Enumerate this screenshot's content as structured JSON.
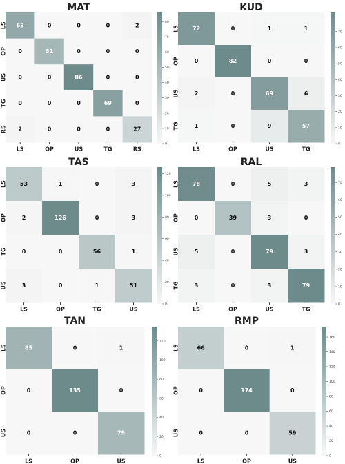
{
  "chart_data": [
    {
      "type": "heatmap",
      "title": "MAT",
      "x_labels": [
        "LS",
        "OP",
        "US",
        "TG",
        "RS"
      ],
      "y_labels": [
        "LS",
        "OP",
        "US",
        "TG",
        "RS"
      ],
      "matrix": [
        [
          63,
          0,
          0,
          0,
          2
        ],
        [
          0,
          51,
          0,
          0,
          0
        ],
        [
          0,
          0,
          86,
          0,
          0
        ],
        [
          0,
          0,
          0,
          69,
          0
        ],
        [
          2,
          0,
          0,
          0,
          27
        ]
      ],
      "colorbar_max": 86,
      "colorbar_ticks": [
        "0",
        "10",
        "20",
        "30",
        "40",
        "50",
        "60",
        "70",
        "80"
      ],
      "colorbar_tick_values": [
        0,
        10,
        20,
        30,
        40,
        50,
        60,
        70,
        80
      ]
    },
    {
      "type": "heatmap",
      "title": "KUD",
      "x_labels": [
        "LS",
        "OP",
        "US",
        "TG"
      ],
      "y_labels": [
        "LS",
        "OP",
        "US",
        "TG"
      ],
      "matrix": [
        [
          72,
          0,
          1,
          1
        ],
        [
          0,
          82,
          0,
          0
        ],
        [
          2,
          0,
          69,
          6
        ],
        [
          1,
          0,
          9,
          57
        ]
      ],
      "colorbar_max": 82,
      "colorbar_ticks": [
        "0",
        "10",
        "20",
        "30",
        "40",
        "50",
        "60",
        "70"
      ],
      "colorbar_tick_values": [
        0,
        10,
        20,
        30,
        40,
        50,
        60,
        70
      ]
    },
    {
      "type": "heatmap",
      "title": "TAS",
      "x_labels": [
        "LS",
        "OP",
        "TG",
        "US"
      ],
      "y_labels": [
        "LS",
        "OP",
        "TG",
        "US"
      ],
      "matrix": [
        [
          53,
          1,
          0,
          3
        ],
        [
          2,
          126,
          0,
          3
        ],
        [
          0,
          0,
          56,
          1
        ],
        [
          3,
          0,
          1,
          51
        ]
      ],
      "colorbar_max": 126,
      "colorbar_ticks": [
        "0",
        "20",
        "40",
        "60",
        "80",
        "100",
        "120"
      ],
      "colorbar_tick_values": [
        0,
        20,
        40,
        60,
        80,
        100,
        120
      ]
    },
    {
      "type": "heatmap",
      "title": "RAL",
      "x_labels": [
        "LS",
        "OP",
        "US",
        "TG"
      ],
      "y_labels": [
        "LS",
        "OP",
        "US",
        "TG"
      ],
      "matrix": [
        [
          78,
          0,
          5,
          3
        ],
        [
          0,
          39,
          3,
          0
        ],
        [
          5,
          0,
          79,
          3
        ],
        [
          3,
          0,
          3,
          79
        ]
      ],
      "colorbar_max": 79,
      "colorbar_ticks": [
        "0",
        "10",
        "20",
        "30",
        "40",
        "50",
        "60",
        "70"
      ],
      "colorbar_tick_values": [
        0,
        10,
        20,
        30,
        40,
        50,
        60,
        70
      ]
    },
    {
      "type": "heatmap",
      "title": "TAN",
      "x_labels": [
        "LS",
        "OP",
        "US"
      ],
      "y_labels": [
        "LS",
        "OP",
        "US"
      ],
      "matrix": [
        [
          85,
          0,
          1
        ],
        [
          0,
          135,
          0
        ],
        [
          0,
          0,
          79
        ]
      ],
      "colorbar_max": 135,
      "colorbar_ticks": [
        "0",
        "20",
        "40",
        "60",
        "80",
        "100",
        "120"
      ],
      "colorbar_tick_values": [
        0,
        20,
        40,
        60,
        80,
        100,
        120
      ]
    },
    {
      "type": "heatmap",
      "title": "RMP",
      "x_labels": [
        "LS",
        "OP",
        "US"
      ],
      "y_labels": [
        "LS",
        "OP",
        "US"
      ],
      "matrix": [
        [
          66,
          0,
          1
        ],
        [
          0,
          174,
          0
        ],
        [
          0,
          0,
          59
        ]
      ],
      "colorbar_max": 174,
      "colorbar_ticks": [
        "0",
        "20",
        "40",
        "60",
        "80",
        "100",
        "120",
        "140",
        "160"
      ],
      "colorbar_tick_values": [
        0,
        20,
        40,
        60,
        80,
        100,
        120,
        140,
        160
      ]
    }
  ],
  "colors": {
    "low": "#f7f7f7",
    "high": "#6e8b8b",
    "text_dark": "#111111",
    "text_light": "#ffffff",
    "axis": "#222222"
  }
}
